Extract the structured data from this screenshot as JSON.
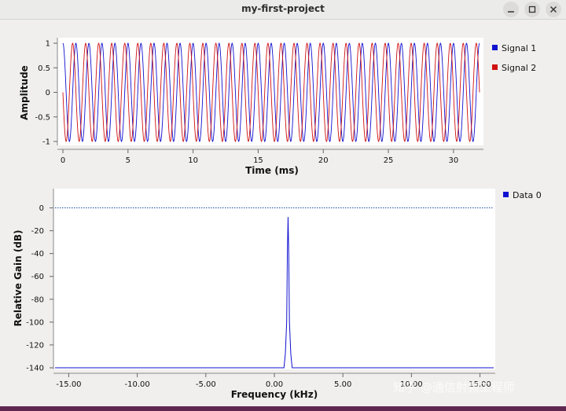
{
  "window": {
    "title": "my-first-project",
    "minimize_icon": "minimize-icon",
    "maximize_icon": "maximize-icon",
    "close_icon": "close-icon"
  },
  "watermark": "知乎 @通信射频工程师",
  "chart_data": [
    {
      "type": "line",
      "title": "",
      "xlabel": "Time (ms)",
      "ylabel": "Amplitude",
      "xlim": [
        0,
        32
      ],
      "ylim": [
        -1,
        1
      ],
      "x_ticks": [
        0,
        5,
        10,
        15,
        20,
        25,
        30
      ],
      "y_ticks": [
        1,
        0.5,
        0,
        -0.5,
        -1
      ],
      "y_tick_labels": [
        "1",
        "0.5",
        "0",
        "-0.5",
        "-1"
      ],
      "legend_position": "right",
      "series": [
        {
          "name": "Signal 1",
          "color": "#1010d0",
          "frequency_khz": 1.0,
          "phase_deg": 0,
          "amplitude": 1
        },
        {
          "name": "Signal 2",
          "color": "#d01010",
          "frequency_khz": 1.0,
          "phase_deg": 90,
          "amplitude": 1
        }
      ]
    },
    {
      "type": "line",
      "title": "",
      "xlabel": "Frequency (kHz)",
      "ylabel": "Relative Gain (dB)",
      "xlim": [
        -16.0,
        16.0
      ],
      "ylim": [
        -140,
        10
      ],
      "x_ticks": [
        -15,
        -10,
        -5,
        0,
        5,
        10,
        15
      ],
      "x_tick_labels": [
        "-15.00",
        "-10.00",
        "-5.00",
        "0.00",
        "5.00",
        "10.00",
        "15.00"
      ],
      "y_ticks": [
        0,
        -20,
        -40,
        -60,
        -80,
        -100,
        -120,
        -140
      ],
      "legend_position": "top-right",
      "reference_line_db": 0,
      "series": [
        {
          "name": "Data 0",
          "color": "#1010d0",
          "x": [
            -16.0,
            0.7,
            0.8,
            0.9,
            0.95,
            1.0,
            1.05,
            1.1,
            1.2,
            1.3,
            16.0
          ],
          "y": [
            -140,
            -140,
            -128,
            -100,
            -40,
            -8,
            -40,
            -100,
            -128,
            -140,
            -140
          ]
        }
      ]
    }
  ]
}
